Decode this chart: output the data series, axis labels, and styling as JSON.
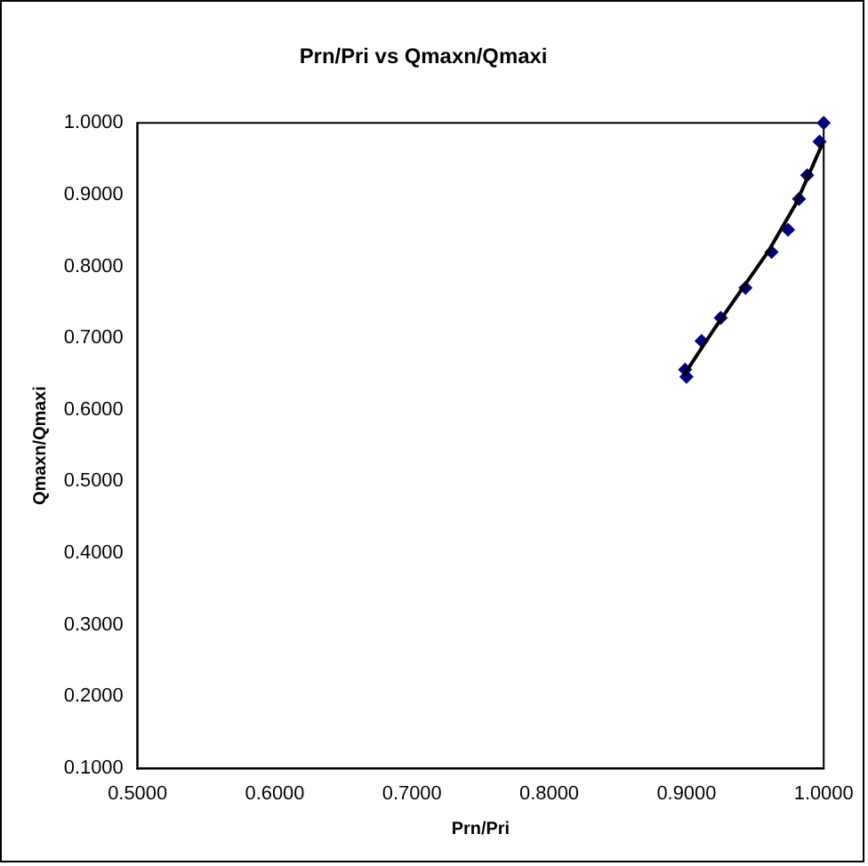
{
  "chart_data": {
    "type": "scatter",
    "title": "Prn/Pri vs Qmaxn/Qmaxi",
    "xlabel": "Prn/Pri",
    "ylabel": "Qmaxn/Qmaxi",
    "series": [
      {
        "color": "#000080",
        "marker": "diamond",
        "x": [
          0.899,
          0.9,
          0.911,
          0.925,
          0.943,
          0.962,
          0.974,
          0.982,
          0.988,
          0.997,
          1.0
        ],
        "values": [
          0.656,
          0.646,
          0.696,
          0.728,
          0.77,
          0.82,
          0.851,
          0.894,
          0.927,
          0.974,
          1.0
        ]
      },
      {
        "type": "line",
        "color": "#000000",
        "marker": "none",
        "line_style": "solid",
        "x": [
          0.898,
          0.92,
          0.94,
          0.96,
          0.98,
          1.0
        ],
        "values": [
          0.648,
          0.712,
          0.767,
          0.822,
          0.888,
          0.975
        ]
      }
    ],
    "xlim": [
      0.5,
      1.0
    ],
    "xticks": [
      {
        "value": 0.5,
        "label": "0.5000"
      },
      {
        "value": 0.6,
        "label": "0.6000"
      },
      {
        "value": 0.7,
        "label": "0.7000"
      },
      {
        "value": 0.8,
        "label": "0.8000"
      },
      {
        "value": 0.9,
        "label": "0.9000"
      },
      {
        "value": 1.0,
        "label": "1.0000"
      }
    ],
    "ylim": [
      0.1,
      1.0
    ],
    "yticks": [
      {
        "value": 0.1,
        "label": "0.1000"
      },
      {
        "value": 0.2,
        "label": "0.2000"
      },
      {
        "value": 0.3,
        "label": "0.3000"
      },
      {
        "value": 0.4,
        "label": "0.4000"
      },
      {
        "value": 0.5,
        "label": "0.5000"
      },
      {
        "value": 0.6,
        "label": "0.6000"
      },
      {
        "value": 0.7,
        "label": "0.7000"
      },
      {
        "value": 0.8,
        "label": "0.8000"
      },
      {
        "value": 0.9,
        "label": "0.9000"
      },
      {
        "value": 1.0,
        "label": "1.0000"
      }
    ],
    "grid": false,
    "legend": false
  }
}
